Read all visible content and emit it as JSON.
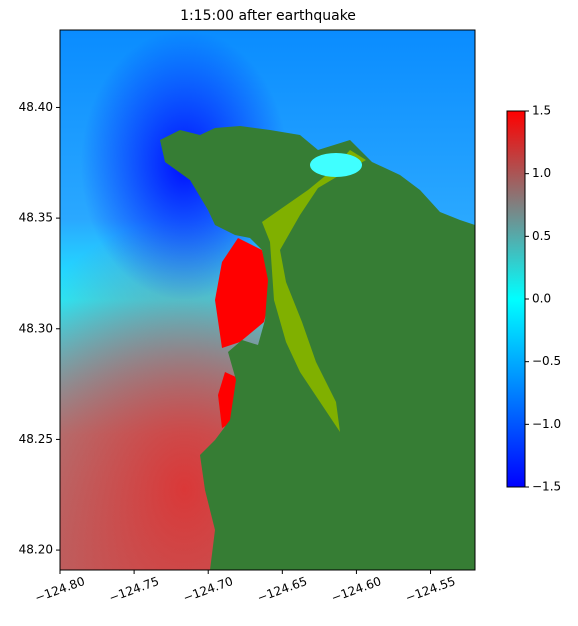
{
  "chart_data": {
    "type": "map",
    "title": "1:15:00 after earthquake",
    "xlim": [
      -124.8,
      -124.52
    ],
    "ylim": [
      48.191,
      48.435
    ],
    "xticks": [
      {
        "value": -124.8,
        "label": "−124.80"
      },
      {
        "value": -124.75,
        "label": "−124.75"
      },
      {
        "value": -124.7,
        "label": "−124.70"
      },
      {
        "value": -124.65,
        "label": "−124.65"
      },
      {
        "value": -124.6,
        "label": "−124.60"
      },
      {
        "value": -124.55,
        "label": "−124.55"
      }
    ],
    "yticks": [
      {
        "value": 48.2,
        "label": "48.20"
      },
      {
        "value": 48.25,
        "label": "48.25"
      },
      {
        "value": 48.3,
        "label": "48.30"
      },
      {
        "value": 48.35,
        "label": "48.35"
      },
      {
        "value": 48.4,
        "label": "48.40"
      }
    ],
    "colorbar": {
      "lim": [
        -1.5,
        1.5
      ],
      "ticks": [
        {
          "value": -1.5,
          "label": "−1.5"
        },
        {
          "value": -1.0,
          "label": "−1.0"
        },
        {
          "value": -0.5,
          "label": "−0.5"
        },
        {
          "value": 0,
          "label": "0.0"
        },
        0.5,
        {
          "value": 1.0,
          "label": "1.0"
        },
        1.5
      ],
      "colors": [
        "#0000ff",
        "#0080ff",
        "#00ffff",
        "#808080",
        "#ff0000"
      ]
    }
  }
}
